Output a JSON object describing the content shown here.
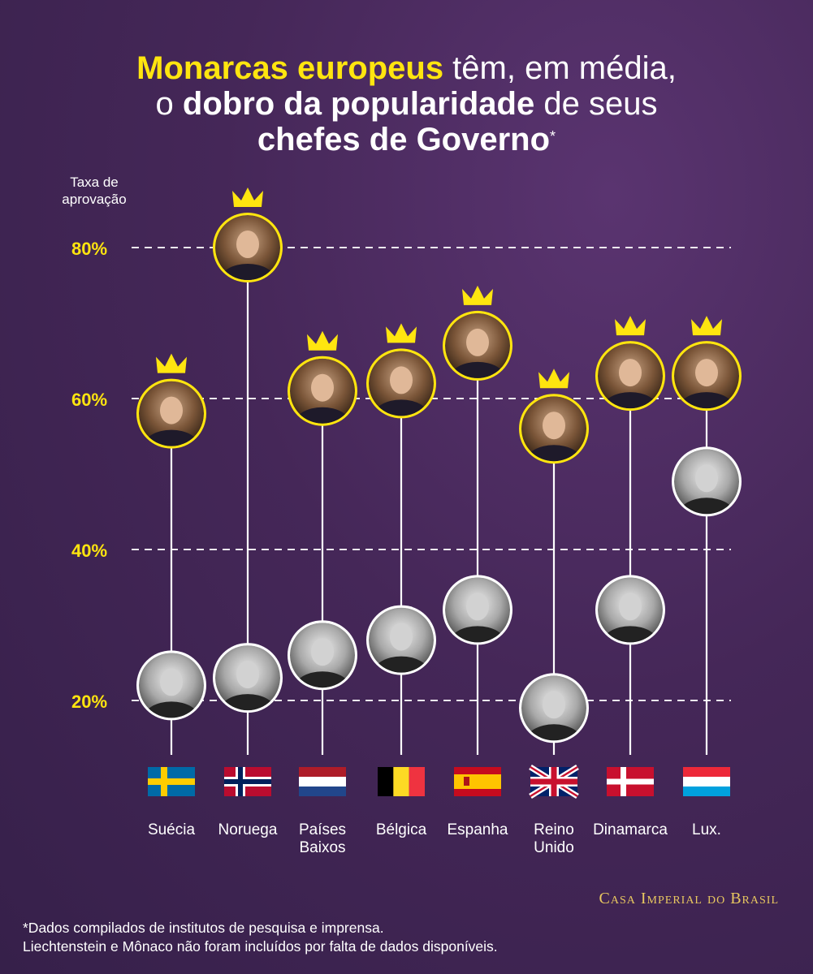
{
  "title": {
    "part1_highlight": "Monarcas europeus",
    "part2": " têm, em média,",
    "part3": "o ",
    "part4_bold": "dobro da popularidade",
    "part5": " de seus",
    "part6_bold": "chefes de Governo",
    "part7_sup": "*"
  },
  "brand": "Casa Imperial do Brasil",
  "footnote": {
    "line1": "*Dados compilados de institutos de pesquisa e imprensa.",
    "line2": "Liechtenstein e Mônaco não foram incluídos por falta de dados disponíveis."
  },
  "colors": {
    "accent": "#ffe50f",
    "background": "#452758",
    "head_of_state_ring": "#ffe50f",
    "head_of_government_ring": "#ffffff"
  },
  "chart_data": {
    "type": "scatter",
    "ylabel": "Taxa de aprovação",
    "yticks": [
      20,
      40,
      60,
      80
    ],
    "ytick_labels": [
      "20%",
      "40%",
      "60%",
      "80%"
    ],
    "ylim": [
      10,
      90
    ],
    "grid": "dashed horizontal at ticks",
    "categories": [
      "Suécia",
      "Noruega",
      "Países Baixos",
      "Bélgica",
      "Espanha",
      "Reino Unido",
      "Dinamarca",
      "Lux."
    ],
    "category_lines": [
      [
        "Suécia"
      ],
      [
        "Noruega"
      ],
      [
        "Países",
        "Baixos"
      ],
      [
        "Bélgica"
      ],
      [
        "Espanha"
      ],
      [
        "Reino",
        "Unido"
      ],
      [
        "Dinamarca"
      ],
      [
        "Lux."
      ]
    ],
    "flags": [
      "sweden-flag",
      "norway-flag",
      "netherlands-flag",
      "belgium-flag",
      "spain-flag",
      "uk-flag",
      "denmark-flag",
      "luxembourg-flag"
    ],
    "series": [
      {
        "values": [
          58,
          80,
          61,
          62,
          67,
          56,
          63,
          63
        ]
      },
      {
        "values": [
          22,
          23,
          26,
          28,
          32,
          19,
          32,
          49
        ]
      }
    ]
  }
}
